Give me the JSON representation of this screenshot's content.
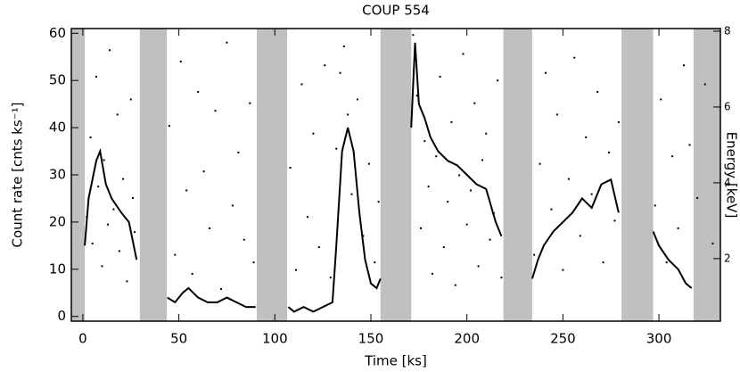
{
  "chart_data": {
    "type": "lightcurve",
    "title": "COUP 554",
    "x_label": "Time [ks]",
    "y_label": "Count rate [cnts ks⁻¹]",
    "y2_label": "Energy [keV]",
    "xlim": [
      -6,
      332
    ],
    "xticks": [
      0,
      50,
      100,
      150,
      200,
      250,
      300
    ],
    "ylim": [
      -1,
      61
    ],
    "yticks": [
      0,
      10,
      20,
      30,
      40,
      50,
      60
    ],
    "y2lim": [
      0.35,
      8.07
    ],
    "y2ticks": [
      2,
      4,
      6,
      8
    ],
    "gap_color": "#c0c0c0",
    "gaps": [
      [
        -6,
        1
      ],
      [
        29.7,
        43.7
      ],
      [
        90.6,
        106.4
      ],
      [
        155,
        171
      ],
      [
        219,
        234
      ],
      [
        280.5,
        297
      ],
      [
        318,
        332
      ]
    ],
    "series": [
      {
        "name": "Count rate",
        "color": "#000000",
        "x": [
          1,
          3,
          7,
          9,
          12,
          15,
          20,
          24,
          28,
          null,
          44,
          48,
          52,
          55,
          60,
          65,
          70,
          75,
          80,
          85,
          90,
          null,
          107,
          110,
          115,
          120,
          125,
          130,
          132,
          135,
          138,
          141,
          144,
          147,
          150,
          153,
          155,
          null,
          171,
          173,
          175,
          178,
          181,
          185,
          190,
          195,
          200,
          205,
          210,
          215,
          218,
          null,
          234,
          237,
          240,
          245,
          250,
          255,
          260,
          265,
          270,
          275,
          279,
          null,
          297,
          300,
          305,
          310,
          314,
          317
        ],
        "values": [
          15,
          25,
          33,
          35,
          28,
          25,
          22,
          20,
          12,
          null,
          4,
          3,
          5,
          6,
          4,
          3,
          3,
          4,
          3,
          2,
          2,
          null,
          2,
          1,
          2,
          1,
          2,
          3,
          15,
          35,
          40,
          35,
          22,
          12,
          7,
          6,
          8,
          null,
          40,
          58,
          45,
          42,
          38,
          35,
          33,
          32,
          30,
          28,
          27,
          20,
          17,
          null,
          8,
          12,
          15,
          18,
          20,
          22,
          25,
          23,
          28,
          29,
          22,
          null,
          18,
          15,
          12,
          10,
          7,
          6
        ]
      },
      {
        "name": "Photon energy",
        "color": "#000000",
        "axis": "y2",
        "x": [
          2,
          4,
          5,
          7,
          8,
          10,
          11,
          13,
          14,
          16,
          18,
          19,
          21,
          23,
          25,
          26,
          27,
          45,
          48,
          51,
          54,
          57,
          60,
          63,
          66,
          69,
          72,
          75,
          78,
          81,
          84,
          87,
          89,
          108,
          111,
          114,
          117,
          120,
          123,
          126,
          129,
          132,
          134,
          136,
          138,
          140,
          143,
          146,
          149,
          152,
          154,
          172,
          174,
          176,
          178,
          180,
          182,
          184,
          186,
          188,
          190,
          192,
          194,
          196,
          198,
          200,
          202,
          204,
          206,
          208,
          210,
          212,
          214,
          216,
          218,
          235,
          238,
          241,
          244,
          247,
          250,
          253,
          256,
          259,
          262,
          265,
          268,
          271,
          274,
          277,
          279,
          298,
          301,
          304,
          307,
          310,
          313,
          316,
          320,
          324,
          328
        ],
        "values": [
          3.1,
          5.2,
          2.4,
          6.8,
          3.9,
          1.8,
          4.6,
          2.9,
          7.5,
          3.3,
          5.8,
          2.2,
          4.1,
          1.4,
          6.2,
          3.6,
          2.7,
          5.5,
          2.1,
          7.2,
          3.8,
          1.6,
          6.4,
          4.3,
          2.8,
          5.9,
          1.2,
          7.7,
          3.4,
          4.8,
          2.5,
          6.1,
          1.9,
          4.4,
          1.7,
          6.6,
          3.1,
          5.3,
          2.3,
          7.1,
          1.5,
          4.9,
          6.9,
          7.6,
          5.8,
          3.7,
          6.2,
          2.6,
          4.5,
          1.9,
          3.5,
          7.9,
          6.3,
          2.8,
          5.1,
          3.9,
          1.6,
          4.7,
          6.8,
          2.3,
          3.5,
          5.6,
          1.3,
          4.2,
          7.4,
          2.9,
          3.8,
          6.1,
          1.8,
          4.6,
          5.3,
          2.5,
          3.2,
          6.7,
          1.5,
          2.1,
          4.5,
          6.9,
          3.3,
          5.8,
          1.7,
          4.1,
          7.3,
          2.6,
          5.2,
          3.7,
          6.4,
          1.9,
          4.8,
          3.0,
          5.6,
          3.4,
          6.2,
          1.9,
          4.7,
          2.8,
          7.1,
          5.0,
          3.6,
          6.6,
          2.4
        ]
      }
    ]
  }
}
